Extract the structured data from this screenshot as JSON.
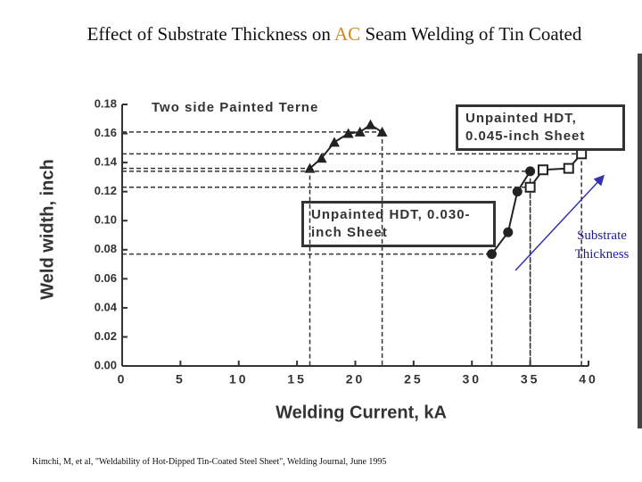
{
  "chart_data": {
    "type": "scatter",
    "title_parts": [
      "Effect of Substrate Thickness on ",
      "AC",
      " Seam Welding of Tin Coated"
    ],
    "x_label": "Welding Current, kA",
    "y_label": "Weld width, inch",
    "xlim": [
      0,
      40
    ],
    "ylim": [
      0,
      0.18
    ],
    "xticks": [
      0,
      5,
      10,
      15,
      20,
      25,
      30,
      35,
      40
    ],
    "yticks": [
      {
        "value": 0,
        "label": "0.00"
      },
      {
        "value": 0.02,
        "label": "0.02"
      },
      {
        "value": 0.04,
        "label": "0.04"
      },
      {
        "value": 0.06,
        "label": "0.06"
      },
      {
        "value": 0.08,
        "label": "0.08"
      },
      {
        "value": 0.1,
        "label": "0.10"
      },
      {
        "value": 0.12,
        "label": "0.12"
      },
      {
        "value": 0.14,
        "label": "0.14"
      },
      {
        "value": 0.16,
        "label": "0.16"
      },
      {
        "value": 0.18,
        "label": "0.18"
      }
    ],
    "grid": false,
    "series": [
      {
        "name": "Two side Painted Terne",
        "marker": "triangle",
        "color": "#222222",
        "x": [
          16.1,
          17.1,
          18.2,
          19.4,
          20.4,
          21.3,
          22.3
        ],
        "values": [
          0.136,
          0.143,
          0.154,
          0.16,
          0.161,
          0.166,
          0.161
        ]
      },
      {
        "name": "Unpainted HDT, 0.030-inch Sheet",
        "marker": "circle",
        "color": "#222222",
        "x": [
          31.7,
          33.1,
          33.9,
          35.0
        ],
        "values": [
          0.077,
          0.092,
          0.12,
          0.134
        ]
      },
      {
        "name": "Unpainted HDT, 0.045-inch Sheet",
        "marker": "square",
        "color": "#222222",
        "x": [
          35.0,
          36.1,
          38.3,
          39.4
        ],
        "values": [
          0.123,
          0.135,
          0.136,
          0.146
        ]
      }
    ],
    "annotation": "Substrate Thickness",
    "arrow_color": "#3333aa",
    "source": "Kimchi, M, et al, \"Weldability of Hot-Dipped Tin-Coated Steel Sheet\", Welding Journal, June 1995"
  }
}
